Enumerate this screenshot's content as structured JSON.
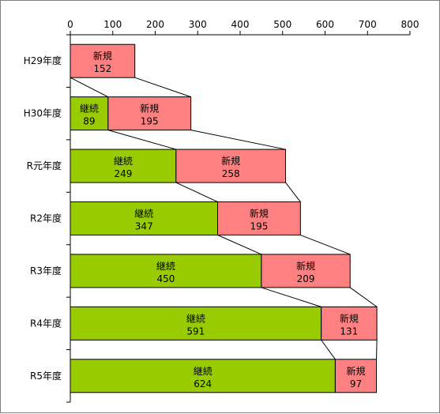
{
  "chart_data": {
    "type": "bar",
    "stacked": true,
    "orientation": "horizontal",
    "categories": [
      "H29年度",
      "H30年度",
      "R元年度",
      "R2年度",
      "R3年度",
      "R4年度",
      "R5年度"
    ],
    "series": [
      {
        "name": "継続",
        "color": "#99cc00",
        "values": [
          0,
          89,
          249,
          347,
          450,
          591,
          624
        ]
      },
      {
        "name": "新規",
        "color": "#ff8080",
        "values": [
          152,
          195,
          258,
          195,
          209,
          131,
          97
        ]
      }
    ],
    "xlim": [
      0,
      800
    ],
    "xticks": [
      "0",
      "100",
      "200",
      "300",
      "400",
      "500",
      "600",
      "700",
      "800"
    ],
    "x_axis_position": "top",
    "grid": false,
    "series_lines": true
  }
}
